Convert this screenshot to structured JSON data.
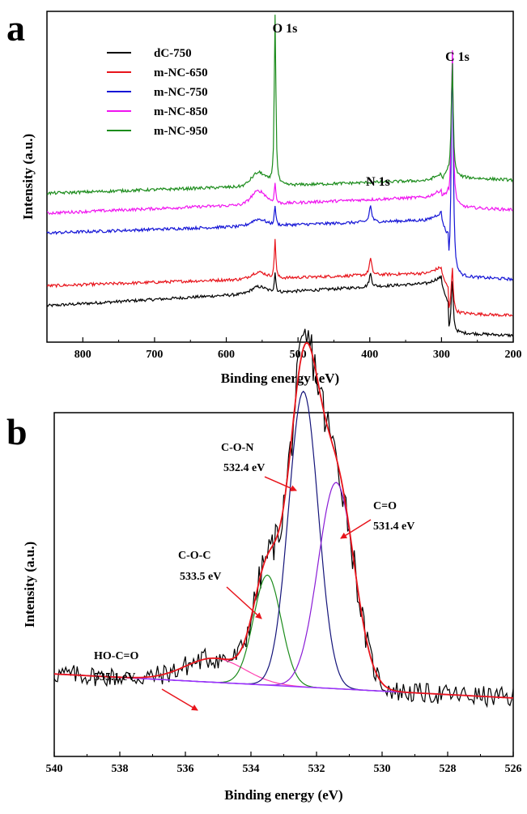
{
  "panels": {
    "a": {
      "letter": "a"
    },
    "b": {
      "letter": "b"
    }
  },
  "chart_data": [
    {
      "type": "line",
      "panel": "a",
      "xlabel": "Binding energy (eV)",
      "ylabel": "Intensity (a.u.)",
      "xlim": [
        850,
        200
      ],
      "x_reversed": true,
      "xticks": [
        800,
        700,
        600,
        500,
        400,
        300,
        200
      ],
      "ylim": [
        0,
        100
      ],
      "yticks_shown": false,
      "legend_position": "top-left",
      "series": [
        {
          "name": "dC-750",
          "color": "#000000",
          "baseline_850": 11,
          "baseline_300": 18,
          "tail_200": 2,
          "peaks": [
            {
              "x": 532,
              "h": 6,
              "w": 1.2
            },
            {
              "x": 399,
              "h": 4,
              "w": 2.0
            },
            {
              "x": 285,
              "h": 16,
              "w": 1.6
            },
            {
              "x": 555,
              "h": 2,
              "w": 10
            }
          ]
        },
        {
          "name": "m-NC-650",
          "color": "#e8141b",
          "baseline_850": 17,
          "baseline_300": 21,
          "tail_200": 8,
          "peaks": [
            {
              "x": 532,
              "h": 12,
              "w": 1.2
            },
            {
              "x": 399,
              "h": 5,
              "w": 2.0
            },
            {
              "x": 285,
              "h": 14,
              "w": 1.6
            },
            {
              "x": 555,
              "h": 2,
              "w": 10
            }
          ]
        },
        {
          "name": "m-NC-750",
          "color": "#1515d6",
          "baseline_850": 33,
          "baseline_300": 37,
          "tail_200": 19,
          "peaks": [
            {
              "x": 532,
              "h": 6,
              "w": 1.2
            },
            {
              "x": 399,
              "h": 5,
              "w": 2.0
            },
            {
              "x": 285,
              "h": 69,
              "w": 1.6
            },
            {
              "x": 555,
              "h": 2,
              "w": 10
            }
          ]
        },
        {
          "name": "m-NC-850",
          "color": "#f014f0",
          "baseline_850": 39,
          "baseline_300": 44,
          "tail_200": 40,
          "peaks": [
            {
              "x": 532,
              "h": 6,
              "w": 1.2
            },
            {
              "x": 285,
              "h": 48,
              "w": 1.6
            },
            {
              "x": 555,
              "h": 4,
              "w": 10
            }
          ]
        },
        {
          "name": "m-NC-950",
          "color": "#1c8c1c",
          "baseline_850": 45,
          "baseline_300": 49,
          "tail_200": 49,
          "peaks": [
            {
              "x": 532,
              "h": 56,
              "w": 1.2
            },
            {
              "x": 285,
              "h": 35,
              "w": 1.6
            },
            {
              "x": 555,
              "h": 4,
              "w": 10
            }
          ]
        }
      ],
      "annotations": [
        {
          "text": "O 1s",
          "x": 532,
          "y": 108
        },
        {
          "text": "C 1s",
          "x": 285,
          "y": 90
        },
        {
          "text": "N 1s",
          "x": 430,
          "y": 60
        }
      ]
    },
    {
      "type": "line",
      "panel": "b",
      "xlabel": "Binding energy (eV)",
      "ylabel": "Intensity (a.u.)",
      "xlim": [
        540,
        526
      ],
      "x_reversed": true,
      "xticks": [
        540,
        538,
        536,
        534,
        532,
        530,
        528,
        526
      ],
      "ylim": [
        0,
        100
      ],
      "yticks_shown": false,
      "baseline": {
        "start": 24,
        "end": 17
      },
      "raw_color": "#000000",
      "envelope_color": "#e8141b",
      "baseline_color": "#9b30ff",
      "components": [
        {
          "label": "HO-C=O",
          "energy": "535.1 eV",
          "center": 535.1,
          "height": 7,
          "width": 0.9,
          "color": "#ff3fb0"
        },
        {
          "label": "C-O-C",
          "energy": "533.5 eV",
          "center": 533.5,
          "height": 32,
          "width": 0.42,
          "color": "#1c8c1c"
        },
        {
          "label": "C-O-N",
          "energy": "532.4 eV",
          "center": 532.4,
          "height": 86,
          "width": 0.45,
          "color": "#14147a"
        },
        {
          "label": "C=O",
          "energy": "531.4 eV",
          "center": 531.4,
          "height": 60,
          "width": 0.55,
          "color": "#8a1cd6"
        }
      ]
    }
  ]
}
